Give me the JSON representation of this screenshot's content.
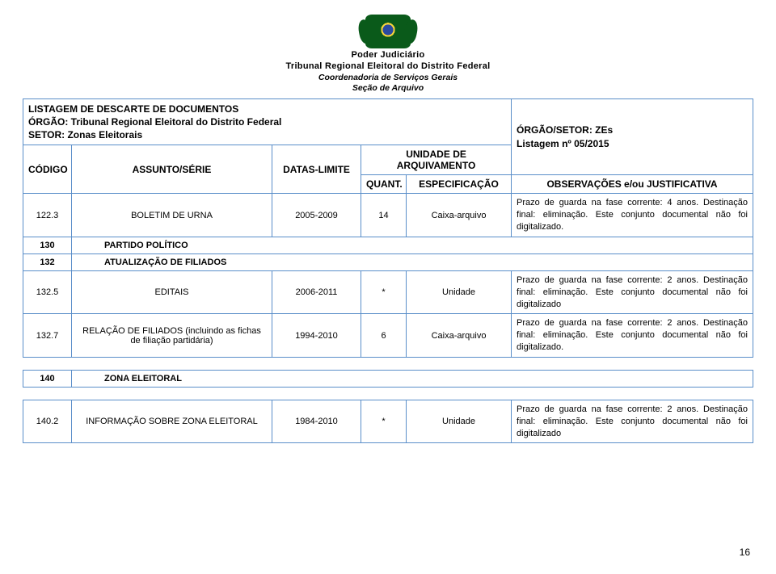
{
  "header": {
    "line1": "Poder Judiciário",
    "line2": "Tribunal Regional Eleitoral do Distrito Federal",
    "line3": "Coordenadoria de Serviços Gerais",
    "line4": "Seção de Arquivo"
  },
  "titleBlock": {
    "left": {
      "l1": "LISTAGEM DE DESCARTE DE DOCUMENTOS",
      "l2": "ÓRGÃO: Tribunal Regional Eleitoral do Distrito Federal",
      "l3": "SETOR: Zonas Eleitorais"
    },
    "right": {
      "l1": "ÓRGÃO/SETOR: ZEs",
      "l2": "Listagem nº 05/2015"
    }
  },
  "columns": {
    "codigo": "CÓDIGO",
    "assunto": "ASSUNTO/SÉRIE",
    "datas": "DATAS-LIMITE",
    "unidade": "UNIDADE DE ARQUIVAMENTO",
    "quant": "QUANT.",
    "espec": "ESPECIFICAÇÃO",
    "obs": "OBSERVAÇÕES e/ou JUSTIFICATIVA"
  },
  "rows": [
    {
      "codigo": "122.3",
      "assunto": "BOLETIM DE URNA",
      "datas": "2005-2009",
      "quant": "14",
      "espec": "Caixa-arquivo",
      "obs": "Prazo de guarda  na fase corrente: 4 anos. Destinação final: eliminação. Este conjunto documental não foi digitalizado."
    },
    {
      "codigo": "130",
      "assunto": "PARTIDO POLÍTICO",
      "section": true
    },
    {
      "codigo": "132",
      "assunto": "ATUALIZAÇÃO DE FILIADOS",
      "section": true
    },
    {
      "codigo": "132.5",
      "assunto": "EDITAIS",
      "datas": "2006-2011",
      "quant": "*",
      "espec": "Unidade",
      "obs": "Prazo de guarda  na fase corrente: 2 anos. Destinação final: eliminação. Este conjunto documental não foi digitalizado"
    },
    {
      "codigo": "132.7",
      "assunto": "RELAÇÃO DE FILIADOS (incluindo as fichas de filiação partidária)",
      "datas": "1994-2010",
      "quant": "6",
      "espec": "Caixa-arquivo",
      "obs": "Prazo de guarda  na fase corrente: 2 anos. Destinação final: eliminação. Este conjunto documental não foi digitalizado."
    },
    {
      "codigo": "140",
      "assunto": "ZONA ELEITORAL",
      "section": true,
      "gapAbove": true
    },
    {
      "codigo": "140.2",
      "assunto": "INFORMAÇÃO SOBRE ZONA ELEITORAL",
      "datas": "1984-2010",
      "quant": "*",
      "espec": "Unidade",
      "obs": "Prazo de guarda  na fase corrente: 2 anos. Destinação final: eliminação. Este conjunto documental não foi digitalizado",
      "gapAbove": true
    }
  ],
  "pageNumber": "16"
}
